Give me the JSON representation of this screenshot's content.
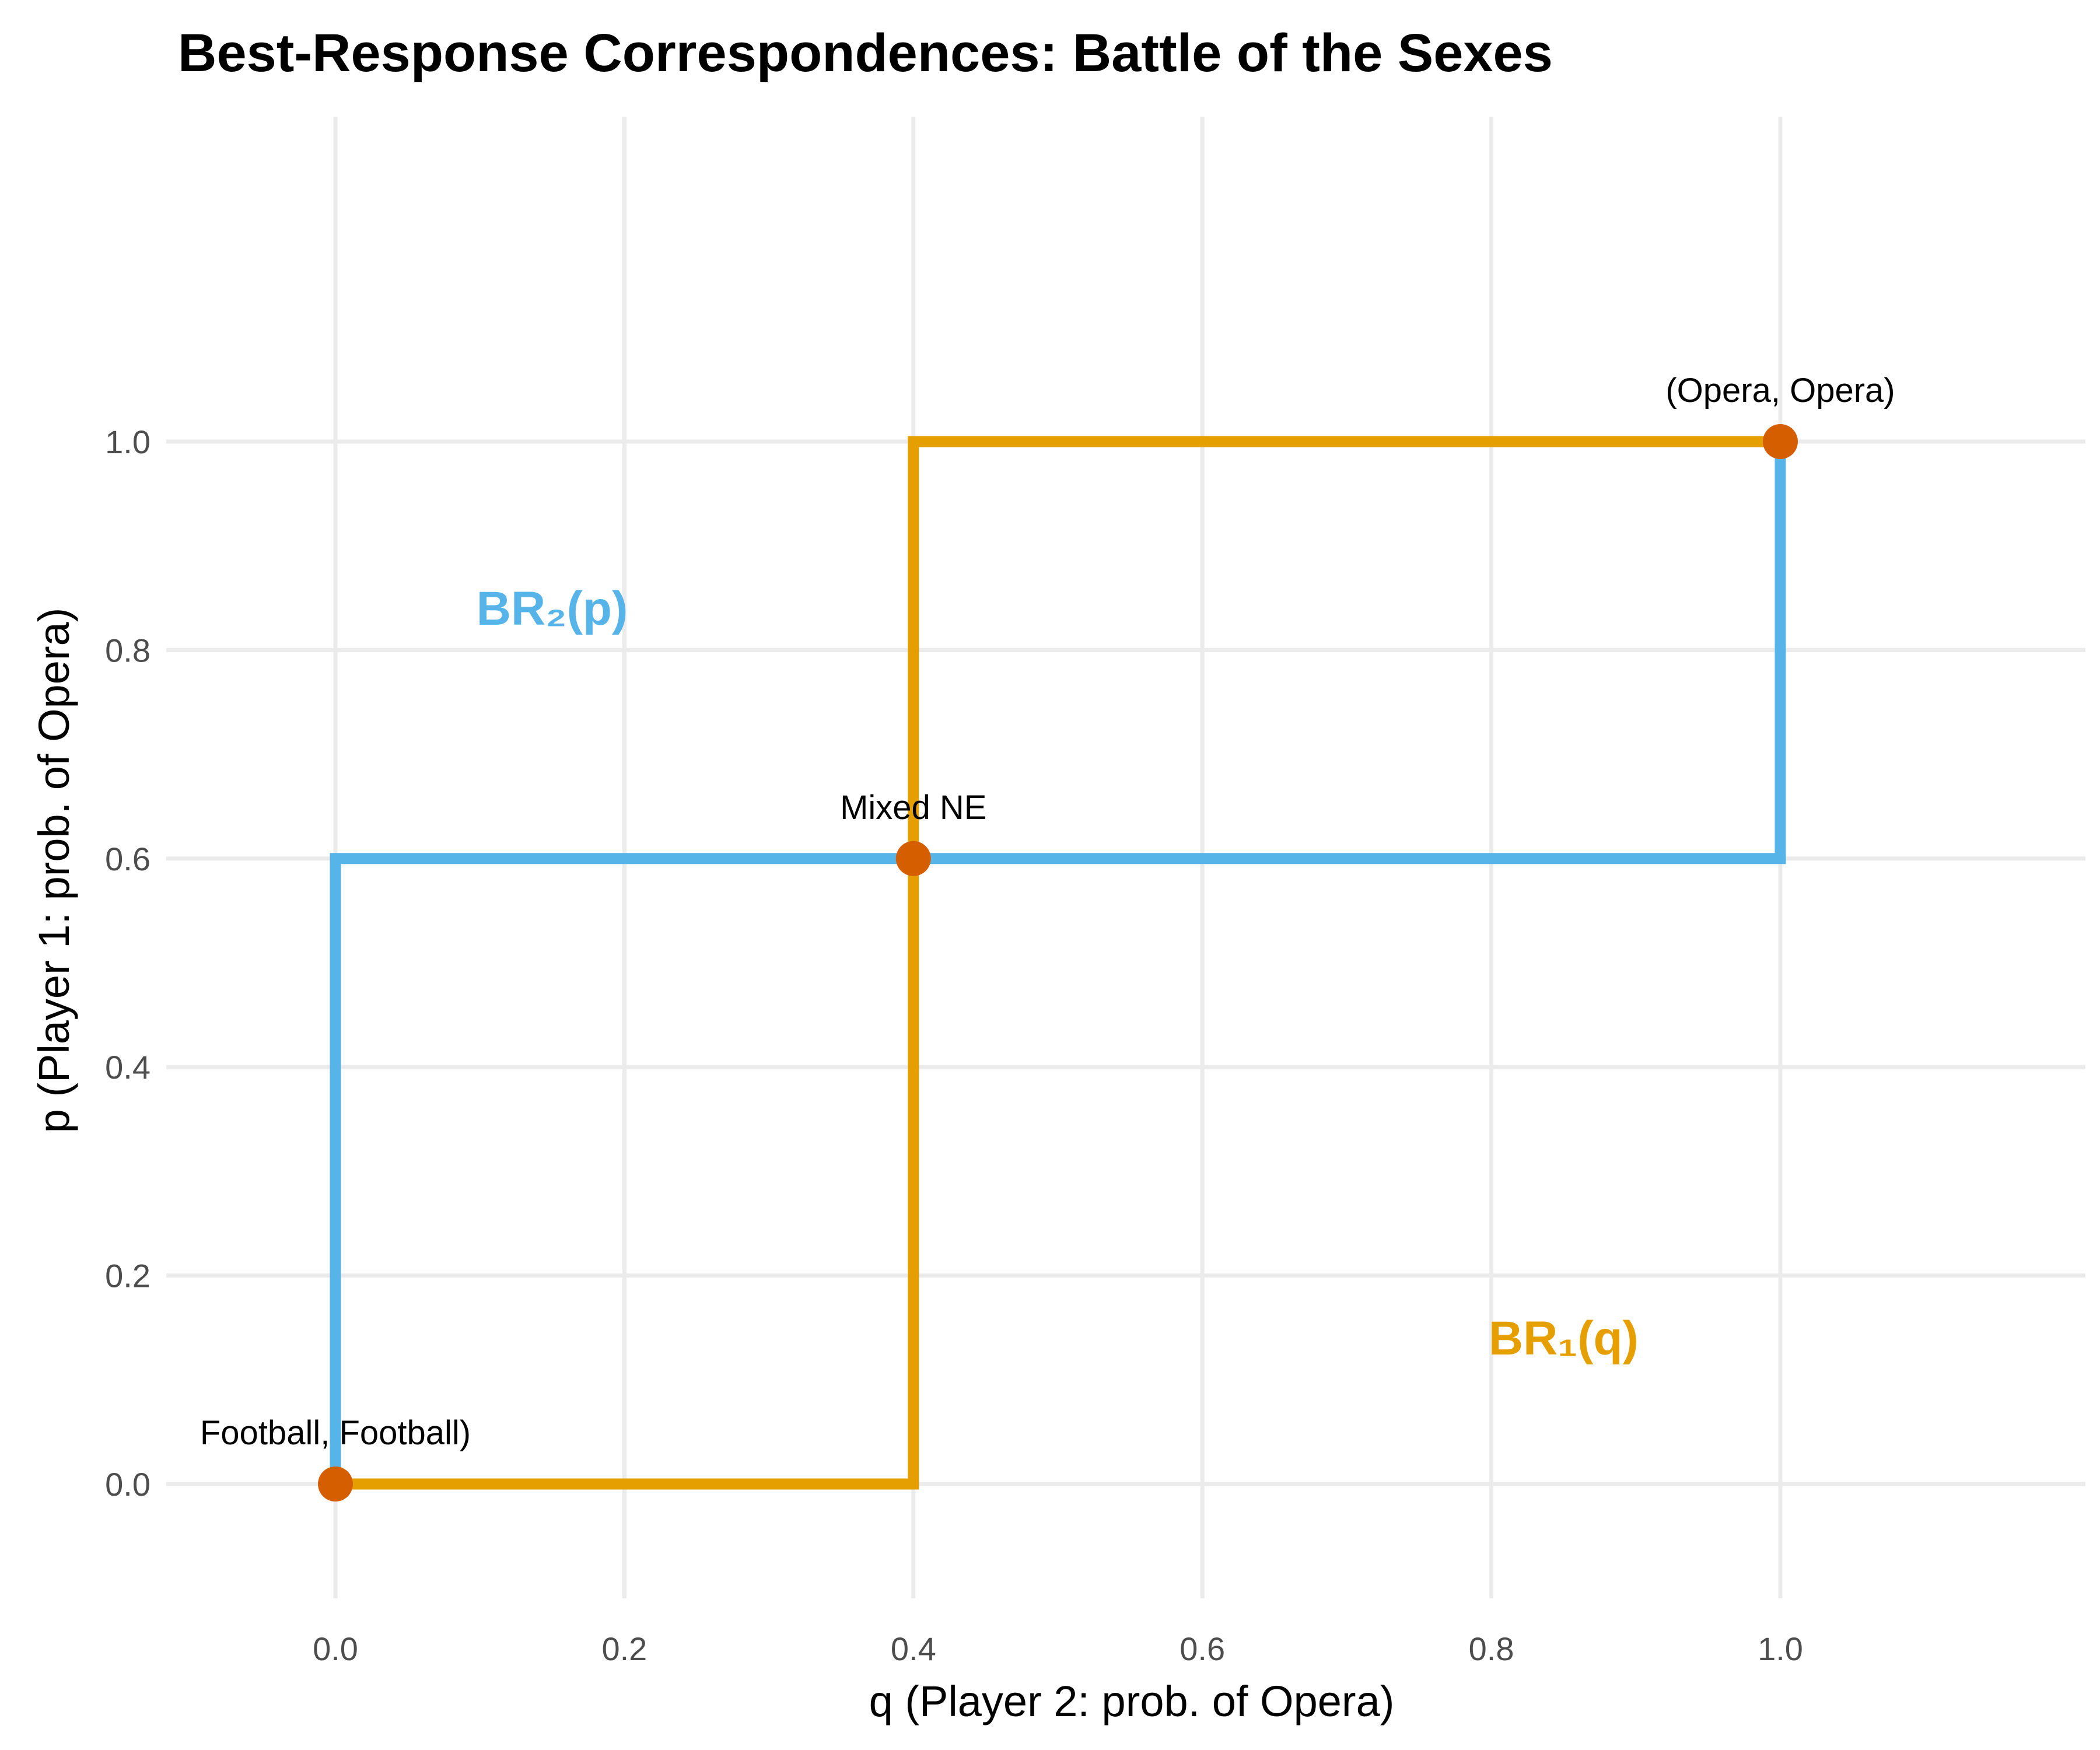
{
  "chart_data": {
    "type": "line",
    "title": "Best-Response Correspondences: Battle of the Sexes",
    "xlabel": "q  (Player 2: prob. of Opera)",
    "ylabel": "p  (Player 1: prob. of Opera)",
    "xlim": [
      -0.12,
      1.2
    ],
    "ylim": [
      -0.12,
      1.52
    ],
    "x_ticks": [
      "0.0",
      "0.2",
      "0.4",
      "0.6",
      "0.8",
      "1.0"
    ],
    "y_ticks": [
      "0.0",
      "0.2",
      "0.4",
      "0.6",
      "0.8",
      "1.0"
    ],
    "grid": true,
    "series": [
      {
        "name": "BR₂(p)",
        "color": "#56B4E9",
        "x": [
          0.0,
          0.0,
          1.0,
          1.0
        ],
        "y": [
          0.0,
          0.6,
          0.6,
          1.0
        ]
      },
      {
        "name": "BR₁(q)",
        "color": "#E69F00",
        "x": [
          0.0,
          0.4,
          0.4,
          1.0,
          1.0
        ],
        "y": [
          0.0,
          0.0,
          1.0,
          1.0,
          1.0
        ]
      }
    ],
    "series_labels": [
      {
        "text": "BR₂(p)",
        "x": 0.15,
        "y": 0.84,
        "color": "#56B4E9"
      },
      {
        "text": "BR₁(q)",
        "x": 0.85,
        "y": 0.14,
        "color": "#E69F00"
      }
    ],
    "equilibria": [
      {
        "label": "Football, Football)",
        "x": 0.0,
        "y": 0.0
      },
      {
        "label": "Mixed NE",
        "x": 0.4,
        "y": 0.6
      },
      {
        "label": "(Opera, Opera)",
        "x": 1.0,
        "y": 1.0
      }
    ],
    "point_color": "#D55E00"
  }
}
